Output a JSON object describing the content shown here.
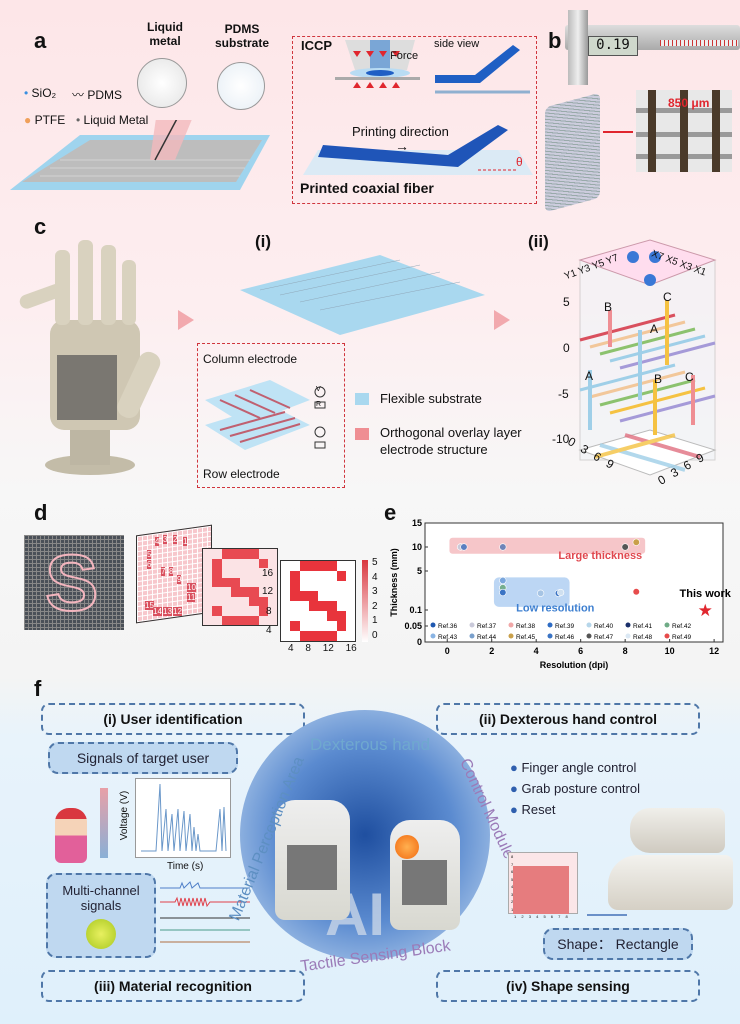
{
  "panel_a": {
    "label": "a",
    "liquid_metal": "Liquid metal",
    "pdms_substrate": "PDMS substrate",
    "legend": [
      "SiO₂",
      "PDMS",
      "PTFE",
      "Liquid Metal"
    ],
    "iccp": "ICCP",
    "force": "Force",
    "side_view": "side view",
    "printing_direction": "Printing direction",
    "theta": "θ",
    "printed_fiber": "Printed coaxial fiber"
  },
  "panel_b": {
    "label": "b",
    "caliper_reading": "0.19",
    "scale": "850 μm"
  },
  "panel_c": {
    "label": "c",
    "sub_i": "(i)",
    "sub_ii": "(ii)",
    "column_electrode": "Column electrode",
    "row_electrode": "Row electrode",
    "legend": [
      {
        "text": "Flexible substrate",
        "color": "#a9d8ef"
      },
      {
        "text": "Orthogonal overlay layer electrode structure",
        "color": "#ef8e93"
      }
    ],
    "z_ticks": [
      "5",
      "0",
      "-5",
      "-10"
    ],
    "top_y": [
      "Y1",
      "Y3",
      "Y5",
      "Y7"
    ],
    "top_x": [
      "X7",
      "X5",
      "X3",
      "X1"
    ],
    "bottom_left": [
      "0",
      "3",
      "6",
      "9"
    ],
    "bottom_right": [
      "0",
      "3",
      "6",
      "9"
    ],
    "layer_labels": [
      "A",
      "B",
      "C"
    ],
    "V": "V",
    "R": "R"
  },
  "panel_d": {
    "label": "d",
    "numbers": [
      "1",
      "2",
      "3",
      "4",
      "5",
      "6",
      "7",
      "8",
      "9",
      "10",
      "11",
      "12",
      "13",
      "14",
      "15"
    ],
    "axis_y": [
      "16",
      "12",
      "8",
      "4"
    ],
    "axis_x": [
      "4",
      "8",
      "12",
      "16"
    ],
    "colorbar": [
      "5",
      "4",
      "3",
      "2",
      "1",
      "0"
    ],
    "s_matrix": [
      [
        0,
        0,
        1,
        1,
        1,
        1,
        0,
        0
      ],
      [
        0,
        1,
        0,
        0,
        0,
        0,
        1,
        0
      ],
      [
        0,
        1,
        0,
        0,
        0,
        0,
        0,
        0
      ],
      [
        0,
        1,
        1,
        1,
        0,
        0,
        0,
        0
      ],
      [
        0,
        0,
        0,
        1,
        1,
        1,
        0,
        0
      ],
      [
        0,
        0,
        0,
        0,
        0,
        1,
        1,
        0
      ],
      [
        0,
        1,
        0,
        0,
        0,
        0,
        1,
        0
      ],
      [
        0,
        0,
        1,
        1,
        1,
        1,
        0,
        0
      ]
    ]
  },
  "chart_data": {
    "type": "scatter",
    "title": "",
    "xlabel": "Resolution (dpi)",
    "ylabel": "Thickness (mm)",
    "xlim": [
      -1,
      12.4
    ],
    "x_ticks": [
      0,
      2,
      4,
      6,
      8,
      10,
      12
    ],
    "y_ticks": [
      0,
      0.05,
      0.1,
      5,
      10,
      15
    ],
    "y_scale": "broken",
    "regions": [
      {
        "text": "Large thickness",
        "color": "#e0484f"
      },
      {
        "text": "Low resolution",
        "color": "#3d7fd0"
      }
    ],
    "points": [
      {
        "ref": "Ref.37",
        "x": 0.6,
        "y": 10,
        "color": "#c9c9d9"
      },
      {
        "ref": "Ref.36",
        "x": 0.75,
        "y": 10,
        "color": "#5a7fc0"
      },
      {
        "ref": "Ref.43",
        "x": 2.5,
        "y": 10,
        "color": "#6f84b8"
      },
      {
        "ref": "Ref.47",
        "x": 8,
        "y": 10,
        "color": "#555"
      },
      {
        "ref": "Ref.45",
        "x": 8.5,
        "y": 11,
        "color": "#c9a04a"
      },
      {
        "ref": "Ref.44",
        "x": 2.5,
        "y": 3.8,
        "color": "#7aa6dc"
      },
      {
        "ref": "Ref.42",
        "x": 2.5,
        "y": 2.9,
        "color": "#74ad8e"
      },
      {
        "ref": "Ref.39",
        "x": 2.5,
        "y": 2.3,
        "color": "#3b74c4"
      },
      {
        "ref": "Ref.40",
        "x": 4.2,
        "y": 2.2,
        "color": "#a6c4e4"
      },
      {
        "ref": "Ref.46",
        "x": 5,
        "y": 2.2,
        "color": "#3b74c4"
      },
      {
        "ref": "Ref.48",
        "x": 5.1,
        "y": 2.3,
        "color": "#cfe0f0"
      },
      {
        "ref": "Ref.49",
        "x": 8.5,
        "y": 2.4,
        "color": "#e74c4c"
      },
      {
        "ref": "This work",
        "x": 11.6,
        "y": 0.1,
        "color": "#e0262e",
        "marker": "star"
      }
    ],
    "legend": [
      {
        "name": "Ref.36",
        "color": "#1f58b0"
      },
      {
        "name": "Ref.37",
        "color": "#c9c9d9"
      },
      {
        "name": "Ref.38",
        "color": "#f1a7a7"
      },
      {
        "name": "Ref.39",
        "color": "#2e6cc4"
      },
      {
        "name": "Ref.40",
        "color": "#b6d6ea"
      },
      {
        "name": "Ref.41",
        "color": "#1a2f6a"
      },
      {
        "name": "Ref.42",
        "color": "#6fab86"
      },
      {
        "name": "Ref.43",
        "color": "#8ab4e4"
      },
      {
        "name": "Ref.44",
        "color": "#7aa0cc"
      },
      {
        "name": "Ref.45",
        "color": "#c9a04a"
      },
      {
        "name": "Ref.46",
        "color": "#3b74c4"
      },
      {
        "name": "Ref.47",
        "color": "#555"
      },
      {
        "name": "Ref.48",
        "color": "#dbe8f4"
      },
      {
        "name": "Ref.49",
        "color": "#e74c4c"
      }
    ],
    "annotation": "This work",
    "label": "e"
  },
  "panel_f": {
    "label": "f",
    "user_identification": "(i) User identification",
    "hand_control": "(ii) Dexterous hand control",
    "material_recognition": "(iii) Material recognition",
    "shape_sensing": "(iv) Shape sensing",
    "signals_target": "Signals of target user",
    "voltage": "Voltage (V)",
    "time": "Time (s)",
    "multi_channel": "Multi-channel signals",
    "bullets": [
      "Finger angle control",
      "Grab posture control",
      "Reset"
    ],
    "shape": "Shape： Rectangle",
    "ring": [
      "Dexterous hand",
      "Control Module",
      "Tactile Sensing Block",
      "Material Perception Area"
    ],
    "center": "AI",
    "shape_y_ticks": [
      "8",
      "7",
      "6",
      "5",
      "4",
      "3",
      "2",
      "1"
    ],
    "shape_x_ticks": [
      "1",
      "2",
      "3",
      "4",
      "5",
      "6",
      "7",
      "8"
    ]
  }
}
